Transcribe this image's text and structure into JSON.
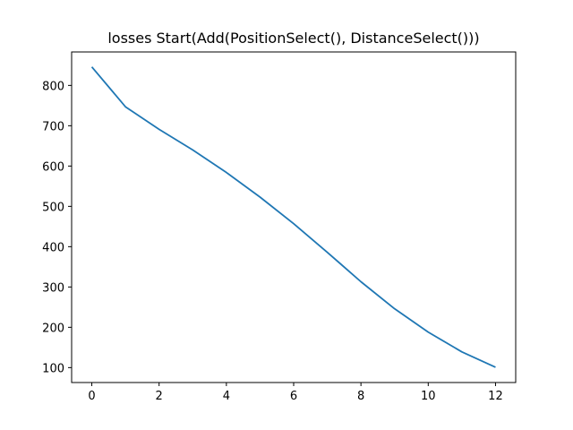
{
  "chart_data": {
    "type": "line",
    "title": "losses Start(Add(PositionSelect(), DistanceSelect()))",
    "xlabel": "",
    "ylabel": "",
    "xlim": [
      -0.6,
      12.6
    ],
    "ylim": [
      63,
      883
    ],
    "x_ticks": [
      0,
      2,
      4,
      6,
      8,
      10,
      12
    ],
    "y_ticks": [
      100,
      200,
      300,
      400,
      500,
      600,
      700,
      800
    ],
    "grid": false,
    "legend": "none",
    "series": [
      {
        "color": "#1f77b4",
        "x": [
          0,
          1,
          2,
          3,
          4,
          5,
          6,
          7,
          8,
          9,
          10,
          11,
          12
        ],
        "values": [
          846,
          747,
          691,
          640,
          584,
          523,
          457,
          386,
          313,
          246,
          188,
          139,
          101
        ]
      }
    ]
  }
}
